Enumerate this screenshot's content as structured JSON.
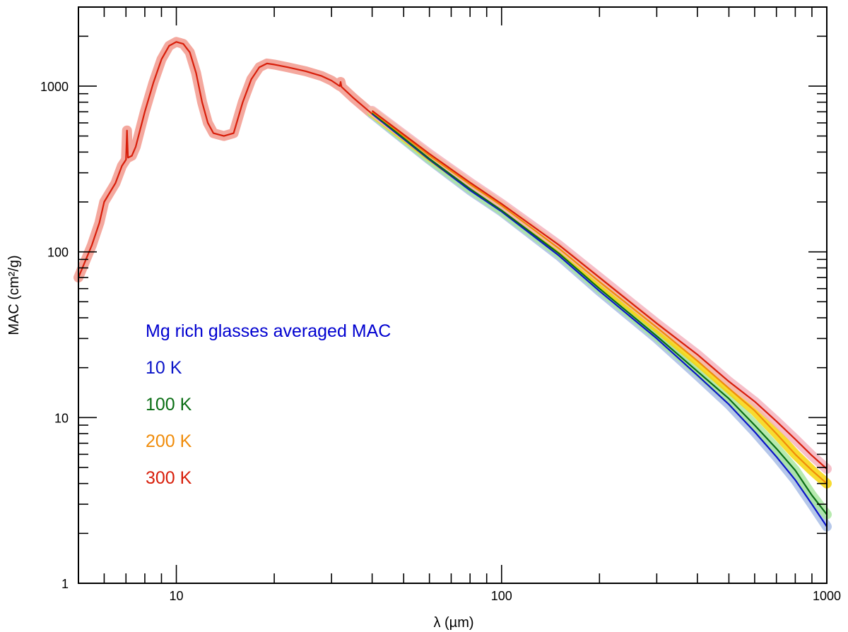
{
  "chart_data": {
    "type": "line",
    "title": "",
    "xlabel": "λ (µm)",
    "ylabel": "MAC (cm²/g)",
    "xscale": "log",
    "yscale": "log",
    "xlim": [
      5,
      1000
    ],
    "ylim": [
      1,
      3000
    ],
    "grid": false,
    "x_tick_labels": [
      {
        "value": 10,
        "label": "10"
      },
      {
        "value": 100,
        "label": "100"
      },
      {
        "value": 1000,
        "label": "1000"
      }
    ],
    "y_tick_labels": [
      {
        "value": 1,
        "label": "1"
      },
      {
        "value": 10,
        "label": "10"
      },
      {
        "value": 100,
        "label": "100"
      },
      {
        "value": 1000,
        "label": "1000"
      }
    ],
    "legend": {
      "title": "Mg rich glasses averaged MAC",
      "title_color": "#0000d0",
      "placement": "left-center",
      "entries": [
        "10 K",
        "100 K",
        "200 K",
        "300 K"
      ]
    },
    "common_curve": {
      "name": "all temperatures (λ < 40 µm)",
      "x": [
        5,
        5.5,
        5.8,
        6.0,
        6.5,
        6.8,
        7.0,
        7.05,
        7.1,
        7.3,
        7.5,
        8.0,
        8.5,
        9.0,
        9.5,
        10.0,
        10.5,
        11.0,
        11.5,
        12.0,
        12.5,
        13.0,
        14.0,
        15.0,
        16.0,
        17.0,
        18.0,
        19.0,
        20.0,
        22.0,
        25.0,
        28.0,
        30.0,
        31.8,
        32.0,
        32.2,
        35.0,
        40.0
      ],
      "y": [
        70,
        110,
        150,
        200,
        260,
        330,
        360,
        540,
        370,
        380,
        430,
        700,
        1050,
        1450,
        1750,
        1850,
        1800,
        1600,
        1200,
        800,
        600,
        520,
        500,
        520,
        800,
        1100,
        1300,
        1370,
        1350,
        1300,
        1230,
        1150,
        1080,
        1000,
        1060,
        990,
        850,
        680
      ],
      "color": "#d81e0a",
      "band_color": "#f4a89e"
    },
    "series": [
      {
        "name": "10 K",
        "color": "#0a14c8",
        "band_color": "#a8bde6",
        "x": [
          40,
          60,
          80,
          100,
          150,
          200,
          300,
          400,
          500,
          600,
          700,
          800,
          900,
          1000
        ],
        "y": [
          680,
          360,
          235,
          175,
          95,
          58,
          30,
          18,
          12,
          8.2,
          5.8,
          4.2,
          3.0,
          2.2
        ]
      },
      {
        "name": "100 K",
        "color": "#0a6e14",
        "band_color": "#a9e6a0",
        "x": [
          40,
          60,
          80,
          100,
          150,
          200,
          300,
          400,
          500,
          600,
          700,
          800,
          900,
          1000
        ],
        "y": [
          690,
          365,
          240,
          178,
          98,
          60,
          31,
          19,
          13,
          9.0,
          6.5,
          4.8,
          3.4,
          2.6
        ]
      },
      {
        "name": "200 K",
        "color": "#f08c0a",
        "band_color": "#f7d50a",
        "x": [
          40,
          60,
          80,
          100,
          150,
          200,
          300,
          400,
          500,
          600,
          700,
          800,
          900,
          1000
        ],
        "y": [
          700,
          380,
          255,
          190,
          105,
          66,
          35,
          22,
          15,
          11,
          8.0,
          6.0,
          4.8,
          4.0
        ]
      },
      {
        "name": "300 K",
        "color": "#d81e0a",
        "band_color": "#f4b4c0",
        "x": [
          40,
          60,
          80,
          100,
          150,
          200,
          300,
          400,
          500,
          600,
          700,
          800,
          900,
          1000
        ],
        "y": [
          710,
          390,
          262,
          195,
          110,
          70,
          37,
          24,
          16.5,
          12.5,
          9.5,
          7.4,
          5.9,
          4.9
        ]
      }
    ]
  }
}
